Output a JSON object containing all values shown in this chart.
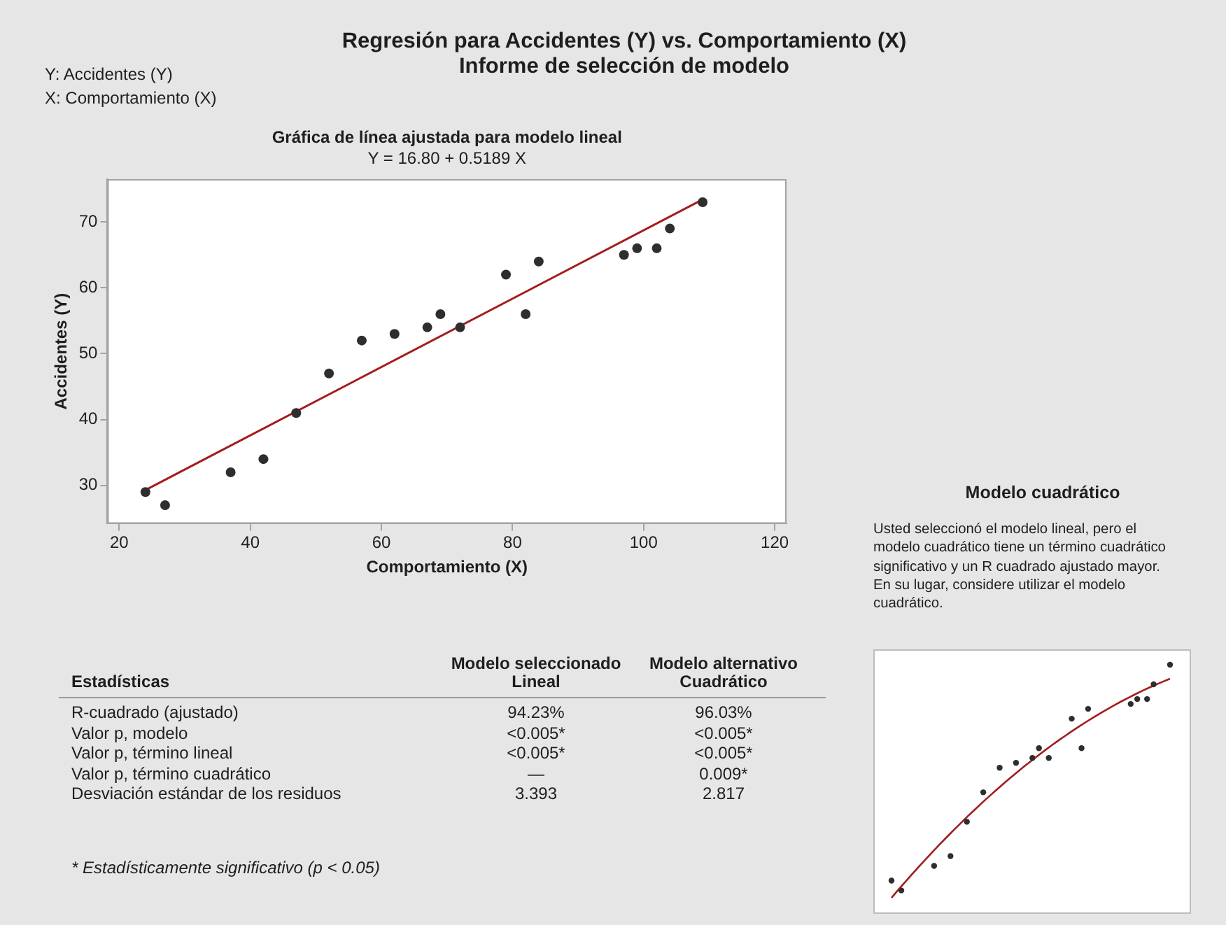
{
  "chart_data": [
    {
      "type": "other",
      "title": "Regresión para Accidentes (Y) vs. Comportamiento (X)",
      "subtitle": "Informe de selección de modelo",
      "annotations": [
        "Y: Accidentes (Y)",
        "X: Comportamiento (X)"
      ]
    },
    {
      "type": "scatter",
      "title": "Gráfica de línea ajustada para modelo lineal",
      "subtitle": "Y = 16.80 + 0.5189 X",
      "xlabel": "Comportamiento (X)",
      "ylabel": "Accidentes (Y)",
      "xlim": [
        18.2,
        121.8
      ],
      "ylim": [
        24.2,
        76.5
      ],
      "xticks": [
        20,
        40,
        60,
        80,
        100,
        120
      ],
      "yticks": [
        30,
        40,
        50,
        60,
        70
      ],
      "marker": "circle",
      "series": [
        {
          "type": "scatter",
          "color": "#2e2e2e",
          "x": [
            24,
            27,
            37,
            42,
            47,
            52,
            57,
            62,
            67,
            69,
            72,
            79,
            82,
            84,
            97,
            99,
            102,
            104,
            109
          ],
          "values": [
            29,
            27,
            32,
            34,
            41,
            47,
            52,
            53,
            54,
            56,
            54,
            62,
            56,
            64,
            65,
            66,
            66,
            69,
            73
          ]
        },
        {
          "type": "line",
          "color": "#a31d1d",
          "marker": "none",
          "x": [
            24,
            109
          ],
          "values": [
            29.3,
            73.4
          ]
        }
      ]
    },
    {
      "type": "other",
      "title": "Modelo cuadrático",
      "annotations": [
        "Usted seleccionó el modelo lineal, pero el modelo cuadrático tiene un término cuadrático significativo y un R cuadrado ajustado mayor. En su lugar, considere utilizar el modelo cuadrático."
      ]
    },
    {
      "type": "other",
      "annotations": [
        "Modelo seleccionado",
        "Modelo alternativo",
        "Estadísticas",
        "Lineal",
        "Cuadrático",
        "R-cuadrado (ajustado)",
        "94.23%",
        "96.03%",
        "Valor p, modelo",
        "<0.005*",
        "<0.005*",
        "Valor p, término lineal",
        "<0.005*",
        "<0.005*",
        "Valor p, término cuadrático",
        "—",
        "0.009*",
        "Desviación estándar de los residuos",
        "3.393",
        "2.817",
        "* Estadísticamente significativo (p < 0.05)"
      ]
    }
  ]
}
